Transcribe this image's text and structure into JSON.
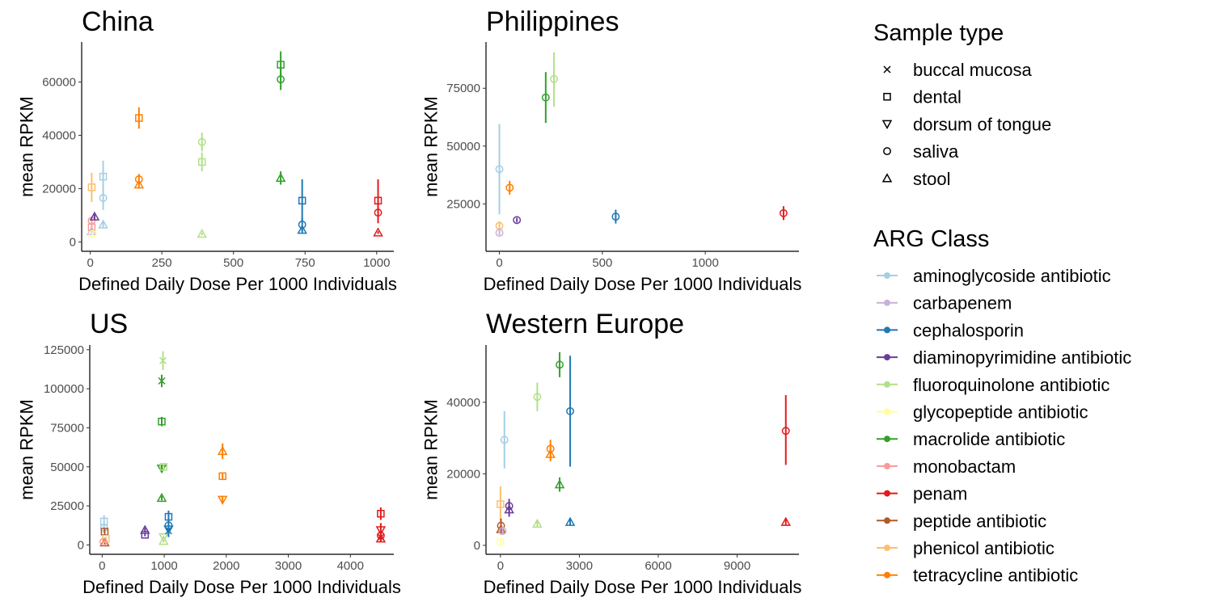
{
  "legend": {
    "shape_title": "Sample type",
    "shapes": [
      {
        "label": "buccal mucosa",
        "shape": "cross"
      },
      {
        "label": "dental",
        "shape": "square"
      },
      {
        "label": "dorsum of tongue",
        "shape": "triangle-down"
      },
      {
        "label": "saliva",
        "shape": "circle"
      },
      {
        "label": "stool",
        "shape": "triangle-up"
      }
    ],
    "color_title": "ARG Class",
    "classes": [
      {
        "label": "aminoglycoside antibiotic",
        "color": "#a6cee3"
      },
      {
        "label": "carbapenem",
        "color": "#cab2d6"
      },
      {
        "label": "cephalosporin",
        "color": "#1f78b4"
      },
      {
        "label": "diaminopyrimidine antibiotic",
        "color": "#6a3d9a"
      },
      {
        "label": "fluoroquinolone antibiotic",
        "color": "#b2df8a"
      },
      {
        "label": "glycopeptide antibiotic",
        "color": "#ffff99"
      },
      {
        "label": "macrolide antibiotic",
        "color": "#33a02c"
      },
      {
        "label": "monobactam",
        "color": "#fb9a99"
      },
      {
        "label": "penam",
        "color": "#e31a1c"
      },
      {
        "label": "peptide antibiotic",
        "color": "#b15928"
      },
      {
        "label": "phenicol antibiotic",
        "color": "#fdbf6f"
      },
      {
        "label": "tetracycline antibiotic",
        "color": "#ff7f00"
      }
    ]
  },
  "chart_data": [
    {
      "type": "scatter",
      "title": "China",
      "xlabel": "Defined Daily Dose Per 1000 Individuals",
      "ylabel": "mean RPKM",
      "xlim": [
        -30,
        1060
      ],
      "ylim": [
        -3500,
        75000
      ],
      "xticks": [
        0,
        250,
        500,
        750,
        1000
      ],
      "yticks": [
        0,
        20000,
        40000,
        60000
      ],
      "ytick_labels": [
        "0",
        "20000",
        "40000",
        "60000"
      ],
      "points": [
        {
          "x": 5,
          "y": 20500,
          "lo": 15000,
          "hi": 26000,
          "cls": "phenicol antibiotic",
          "shape": "square"
        },
        {
          "x": 5,
          "y": 8000,
          "lo": 7000,
          "hi": 9000,
          "cls": "monobactam",
          "shape": "circle"
        },
        {
          "x": 5,
          "y": 5500,
          "lo": 4500,
          "hi": 6500,
          "cls": "monobactam",
          "shape": "square"
        },
        {
          "x": 5,
          "y": 4000,
          "lo": 3500,
          "hi": 4500,
          "cls": "carbapenem",
          "shape": "triangle-up"
        },
        {
          "x": 8,
          "y": 3000,
          "lo": 2500,
          "hi": 3500,
          "cls": "glycopeptide antibiotic",
          "shape": "circle"
        },
        {
          "x": 15,
          "y": 9500,
          "lo": 8500,
          "hi": 10500,
          "cls": "diaminopyrimidine antibiotic",
          "shape": "triangle-up"
        },
        {
          "x": 45,
          "y": 24500,
          "lo": 18000,
          "hi": 30500,
          "cls": "aminoglycoside antibiotic",
          "shape": "square"
        },
        {
          "x": 45,
          "y": 16500,
          "lo": 12000,
          "hi": 21000,
          "cls": "aminoglycoside antibiotic",
          "shape": "circle"
        },
        {
          "x": 45,
          "y": 6500,
          "lo": 5500,
          "hi": 7500,
          "cls": "aminoglycoside antibiotic",
          "shape": "triangle-up"
        },
        {
          "x": 170,
          "y": 46500,
          "lo": 42500,
          "hi": 50500,
          "cls": "tetracycline antibiotic",
          "shape": "square"
        },
        {
          "x": 170,
          "y": 23500,
          "lo": 21500,
          "hi": 25500,
          "cls": "tetracycline antibiotic",
          "shape": "circle"
        },
        {
          "x": 170,
          "y": 21500,
          "lo": 20000,
          "hi": 23000,
          "cls": "tetracycline antibiotic",
          "shape": "triangle-up"
        },
        {
          "x": 390,
          "y": 37500,
          "lo": 34000,
          "hi": 41000,
          "cls": "fluoroquinolone antibiotic",
          "shape": "circle"
        },
        {
          "x": 390,
          "y": 30000,
          "lo": 26500,
          "hi": 33500,
          "cls": "fluoroquinolone antibiotic",
          "shape": "square"
        },
        {
          "x": 390,
          "y": 3000,
          "lo": 2500,
          "hi": 3500,
          "cls": "fluoroquinolone antibiotic",
          "shape": "triangle-up"
        },
        {
          "x": 665,
          "y": 66500,
          "lo": 62000,
          "hi": 71500,
          "cls": "macrolide antibiotic",
          "shape": "square"
        },
        {
          "x": 665,
          "y": 61000,
          "lo": 57000,
          "hi": 65000,
          "cls": "macrolide antibiotic",
          "shape": "circle"
        },
        {
          "x": 665,
          "y": 24000,
          "lo": 21500,
          "hi": 26500,
          "cls": "macrolide antibiotic",
          "shape": "triangle-up"
        },
        {
          "x": 740,
          "y": 15500,
          "lo": 8000,
          "hi": 23500,
          "cls": "cephalosporin",
          "shape": "square"
        },
        {
          "x": 740,
          "y": 6500,
          "lo": 4000,
          "hi": 9000,
          "cls": "cephalosporin",
          "shape": "circle"
        },
        {
          "x": 740,
          "y": 4500,
          "lo": 3500,
          "hi": 5500,
          "cls": "cephalosporin",
          "shape": "triangle-up"
        },
        {
          "x": 1005,
          "y": 15500,
          "lo": 10000,
          "hi": 23500,
          "cls": "penam",
          "shape": "square"
        },
        {
          "x": 1005,
          "y": 11000,
          "lo": 7000,
          "hi": 15000,
          "cls": "penam",
          "shape": "circle"
        },
        {
          "x": 1005,
          "y": 3500,
          "lo": 3000,
          "hi": 4000,
          "cls": "penam",
          "shape": "triangle-up"
        }
      ]
    },
    {
      "type": "scatter",
      "title": "Philippines",
      "xlabel": "Defined Daily Dose Per 1000 Individuals",
      "ylabel": "mean RPKM",
      "xlim": [
        -65,
        1455
      ],
      "ylim": [
        4500,
        95000
      ],
      "xticks": [
        0,
        500,
        1000
      ],
      "yticks": [
        25000,
        50000,
        75000
      ],
      "ytick_labels": [
        "25000",
        "50000",
        "75000"
      ],
      "points": [
        {
          "x": 0,
          "y": 40000,
          "lo": 20500,
          "hi": 59500,
          "cls": "aminoglycoside antibiotic",
          "shape": "circle"
        },
        {
          "x": 0,
          "y": 15500,
          "lo": 13500,
          "hi": 17500,
          "cls": "phenicol antibiotic",
          "shape": "circle"
        },
        {
          "x": 0,
          "y": 12500,
          "lo": 11500,
          "hi": 13500,
          "cls": "carbapenem",
          "shape": "circle"
        },
        {
          "x": 50,
          "y": 32000,
          "lo": 29000,
          "hi": 35000,
          "cls": "tetracycline antibiotic",
          "shape": "circle"
        },
        {
          "x": 85,
          "y": 18000,
          "lo": 17000,
          "hi": 19000,
          "cls": "diaminopyrimidine antibiotic",
          "shape": "circle"
        },
        {
          "x": 225,
          "y": 71000,
          "lo": 60000,
          "hi": 82000,
          "cls": "macrolide antibiotic",
          "shape": "circle"
        },
        {
          "x": 265,
          "y": 79000,
          "lo": 67000,
          "hi": 90500,
          "cls": "fluoroquinolone antibiotic",
          "shape": "circle"
        },
        {
          "x": 565,
          "y": 19500,
          "lo": 16500,
          "hi": 22500,
          "cls": "cephalosporin",
          "shape": "circle"
        },
        {
          "x": 1380,
          "y": 21000,
          "lo": 18000,
          "hi": 24000,
          "cls": "penam",
          "shape": "circle"
        }
      ]
    },
    {
      "type": "scatter",
      "title": "US",
      "xlabel": "Defined Daily Dose Per 1000 Individuals",
      "ylabel": "mean RPKM",
      "xlim": [
        -200,
        4700
      ],
      "ylim": [
        -6000,
        128000
      ],
      "xticks": [
        0,
        1000,
        2000,
        3000,
        4000
      ],
      "yticks": [
        0,
        25000,
        50000,
        75000,
        100000,
        125000
      ],
      "ytick_labels": [
        "0",
        "25000",
        "50000",
        "75000",
        "100000",
        "125000"
      ],
      "points": [
        {
          "x": 30,
          "y": 15000,
          "lo": 11000,
          "hi": 19000,
          "cls": "aminoglycoside antibiotic",
          "shape": "square"
        },
        {
          "x": 30,
          "y": 11000,
          "lo": 8000,
          "hi": 14000,
          "cls": "aminoglycoside antibiotic",
          "shape": "circle"
        },
        {
          "x": 40,
          "y": 8500,
          "lo": 6500,
          "hi": 10500,
          "cls": "peptide antibiotic",
          "shape": "square"
        },
        {
          "x": 40,
          "y": 1500,
          "lo": 500,
          "hi": 2500,
          "cls": "peptide antibiotic",
          "shape": "triangle-up"
        },
        {
          "x": 60,
          "y": 4000,
          "lo": 3000,
          "hi": 5000,
          "cls": "phenicol antibiotic",
          "shape": "square"
        },
        {
          "x": 20,
          "y": 2000,
          "lo": 1500,
          "hi": 2500,
          "cls": "monobactam",
          "shape": "circle"
        },
        {
          "x": 690,
          "y": 9500,
          "lo": 8000,
          "hi": 11000,
          "cls": "diaminopyrimidine antibiotic",
          "shape": "triangle-up"
        },
        {
          "x": 690,
          "y": 6500,
          "lo": 5500,
          "hi": 7500,
          "cls": "diaminopyrimidine antibiotic",
          "shape": "square"
        },
        {
          "x": 980,
          "y": 118000,
          "lo": 112000,
          "hi": 124000,
          "cls": "fluoroquinolone antibiotic",
          "shape": "cross"
        },
        {
          "x": 960,
          "y": 105000,
          "lo": 101000,
          "hi": 109000,
          "cls": "macrolide antibiotic",
          "shape": "cross"
        },
        {
          "x": 960,
          "y": 79000,
          "lo": 76000,
          "hi": 82000,
          "cls": "macrolide antibiotic",
          "shape": "square"
        },
        {
          "x": 960,
          "y": 49000,
          "lo": 47000,
          "hi": 51000,
          "cls": "macrolide antibiotic",
          "shape": "triangle-down"
        },
        {
          "x": 960,
          "y": 30000,
          "lo": 28500,
          "hi": 31500,
          "cls": "macrolide antibiotic",
          "shape": "triangle-up"
        },
        {
          "x": 990,
          "y": 50000,
          "lo": 48500,
          "hi": 51500,
          "cls": "fluoroquinolone antibiotic",
          "shape": "square"
        },
        {
          "x": 990,
          "y": 5000,
          "lo": 4000,
          "hi": 6000,
          "cls": "fluoroquinolone antibiotic",
          "shape": "triangle-down"
        },
        {
          "x": 990,
          "y": 2500,
          "lo": 1500,
          "hi": 3500,
          "cls": "fluoroquinolone antibiotic",
          "shape": "triangle-up"
        },
        {
          "x": 1070,
          "y": 18000,
          "lo": 14000,
          "hi": 22000,
          "cls": "cephalosporin",
          "shape": "square"
        },
        {
          "x": 1070,
          "y": 12500,
          "lo": 8500,
          "hi": 16500,
          "cls": "cephalosporin",
          "shape": "circle"
        },
        {
          "x": 1070,
          "y": 10000,
          "lo": 6000,
          "hi": 14000,
          "cls": "cephalosporin",
          "shape": "triangle-down"
        },
        {
          "x": 1070,
          "y": 9000,
          "lo": 5000,
          "hi": 13000,
          "cls": "cephalosporin",
          "shape": "cross"
        },
        {
          "x": 1940,
          "y": 60000,
          "lo": 55000,
          "hi": 65000,
          "cls": "tetracycline antibiotic",
          "shape": "triangle-up"
        },
        {
          "x": 1940,
          "y": 44000,
          "lo": 42000,
          "hi": 46000,
          "cls": "tetracycline antibiotic",
          "shape": "square"
        },
        {
          "x": 1940,
          "y": 29000,
          "lo": 26500,
          "hi": 31500,
          "cls": "tetracycline antibiotic",
          "shape": "triangle-down"
        },
        {
          "x": 4490,
          "y": 20000,
          "lo": 16000,
          "hi": 24000,
          "cls": "penam",
          "shape": "square"
        },
        {
          "x": 4490,
          "y": 9500,
          "lo": 5000,
          "hi": 14000,
          "cls": "penam",
          "shape": "triangle-down"
        },
        {
          "x": 4490,
          "y": 6000,
          "lo": 3000,
          "hi": 9000,
          "cls": "penam",
          "shape": "circle"
        },
        {
          "x": 4490,
          "y": 4000,
          "lo": 2000,
          "hi": 6000,
          "cls": "penam",
          "shape": "triangle-up"
        },
        {
          "x": 4490,
          "y": 5000,
          "lo": 2500,
          "hi": 7500,
          "cls": "penam",
          "shape": "cross"
        }
      ]
    },
    {
      "type": "scatter",
      "title": "Western Europe",
      "xlabel": "Defined Daily Dose Per 1000 Individuals",
      "ylabel": "mean RPKM",
      "xlim": [
        -550,
        11350
      ],
      "ylim": [
        -2500,
        56000
      ],
      "xticks": [
        0,
        3000,
        6000,
        9000
      ],
      "yticks": [
        0,
        20000,
        40000
      ],
      "ytick_labels": [
        "0",
        "20000",
        "40000"
      ],
      "points": [
        {
          "x": 0,
          "y": 11500,
          "lo": 6500,
          "hi": 16500,
          "cls": "phenicol antibiotic",
          "shape": "square"
        },
        {
          "x": 0,
          "y": 1000,
          "lo": 500,
          "hi": 1500,
          "cls": "glycopeptide antibiotic",
          "shape": "circle"
        },
        {
          "x": 20,
          "y": 5500,
          "lo": 3500,
          "hi": 7500,
          "cls": "peptide antibiotic",
          "shape": "circle"
        },
        {
          "x": 20,
          "y": 4500,
          "lo": 3000,
          "hi": 6000,
          "cls": "peptide antibiotic",
          "shape": "triangle-up"
        },
        {
          "x": 80,
          "y": 4000,
          "lo": 3000,
          "hi": 5000,
          "cls": "carbapenem",
          "shape": "circle"
        },
        {
          "x": 150,
          "y": 29500,
          "lo": 21500,
          "hi": 37500,
          "cls": "aminoglycoside antibiotic",
          "shape": "circle"
        },
        {
          "x": 330,
          "y": 11000,
          "lo": 9000,
          "hi": 13000,
          "cls": "diaminopyrimidine antibiotic",
          "shape": "circle"
        },
        {
          "x": 330,
          "y": 10000,
          "lo": 8000,
          "hi": 12000,
          "cls": "diaminopyrimidine antibiotic",
          "shape": "triangle-up"
        },
        {
          "x": 1400,
          "y": 41500,
          "lo": 37500,
          "hi": 45500,
          "cls": "fluoroquinolone antibiotic",
          "shape": "circle"
        },
        {
          "x": 1400,
          "y": 6000,
          "lo": 5000,
          "hi": 7000,
          "cls": "fluoroquinolone antibiotic",
          "shape": "triangle-up"
        },
        {
          "x": 1900,
          "y": 27000,
          "lo": 24500,
          "hi": 29500,
          "cls": "tetracycline antibiotic",
          "shape": "circle"
        },
        {
          "x": 1900,
          "y": 25500,
          "lo": 23500,
          "hi": 27500,
          "cls": "tetracycline antibiotic",
          "shape": "triangle-up"
        },
        {
          "x": 2250,
          "y": 50500,
          "lo": 47000,
          "hi": 54000,
          "cls": "macrolide antibiotic",
          "shape": "circle"
        },
        {
          "x": 2250,
          "y": 17000,
          "lo": 15000,
          "hi": 19000,
          "cls": "macrolide antibiotic",
          "shape": "triangle-up"
        },
        {
          "x": 2650,
          "y": 37500,
          "lo": 22000,
          "hi": 53000,
          "cls": "cephalosporin",
          "shape": "circle"
        },
        {
          "x": 2650,
          "y": 6500,
          "lo": 5500,
          "hi": 7500,
          "cls": "cephalosporin",
          "shape": "triangle-up"
        },
        {
          "x": 10850,
          "y": 32000,
          "lo": 22500,
          "hi": 42000,
          "cls": "penam",
          "shape": "circle"
        },
        {
          "x": 10850,
          "y": 6500,
          "lo": 5500,
          "hi": 7500,
          "cls": "penam",
          "shape": "triangle-up"
        }
      ]
    }
  ]
}
